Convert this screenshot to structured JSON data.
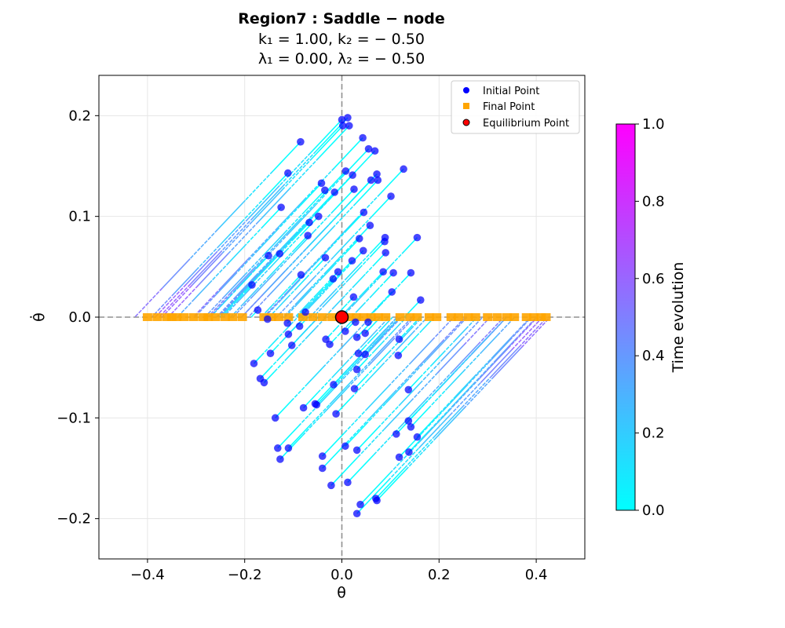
{
  "chart_data": {
    "type": "scatter",
    "title": [
      "Region7 : Saddle − node",
      "k₁ = 1.00, k₂ = − 0.50",
      "λ₁ = 0.00, λ₂ = − 0.50"
    ],
    "xlabel": "θ",
    "ylabel": "θ̇",
    "xlim": [
      -0.5,
      0.5
    ],
    "ylim": [
      -0.24,
      0.24
    ],
    "x_ticks": [
      -0.4,
      -0.2,
      0.0,
      0.2,
      0.4
    ],
    "x_tick_labels": [
      "−0.4",
      "−0.2",
      "0.0",
      "0.2",
      "0.4"
    ],
    "y_ticks": [
      -0.2,
      -0.1,
      0.0,
      0.1,
      0.2
    ],
    "y_tick_labels": [
      "−0.2",
      "−0.1",
      "0.0",
      "0.1",
      "0.2"
    ],
    "grid": true,
    "legend_position": "top-right",
    "legend": [
      "Initial Point",
      "Final Point",
      "Equilibrium Point"
    ],
    "trajectory_slope_dtheta_per_dtheta_dot": -1.96,
    "initial_points": [
      [
        0.0,
        0.196
      ],
      [
        0.012,
        0.198
      ],
      [
        0.002,
        0.19
      ],
      [
        0.015,
        0.19
      ],
      [
        0.043,
        0.178
      ],
      [
        0.055,
        0.167
      ],
      [
        0.068,
        0.165
      ],
      [
        -0.085,
        0.174
      ],
      [
        0.127,
        0.147
      ],
      [
        0.008,
        0.145
      ],
      [
        0.022,
        0.141
      ],
      [
        0.072,
        0.142
      ],
      [
        0.06,
        0.136
      ],
      [
        0.074,
        0.136
      ],
      [
        -0.111,
        0.143
      ],
      [
        -0.042,
        0.133
      ],
      [
        -0.035,
        0.126
      ],
      [
        -0.015,
        0.124
      ],
      [
        0.025,
        0.127
      ],
      [
        0.101,
        0.12
      ],
      [
        -0.125,
        0.109
      ],
      [
        -0.048,
        0.1
      ],
      [
        0.045,
        0.104
      ],
      [
        -0.067,
        0.094
      ],
      [
        0.058,
        0.091
      ],
      [
        -0.07,
        0.081
      ],
      [
        0.036,
        0.078
      ],
      [
        0.089,
        0.079
      ],
      [
        0.088,
        0.075
      ],
      [
        0.155,
        0.079
      ],
      [
        0.044,
        0.066
      ],
      [
        0.09,
        0.064
      ],
      [
        -0.151,
        0.061
      ],
      [
        -0.128,
        0.063
      ],
      [
        -0.034,
        0.059
      ],
      [
        0.021,
        0.056
      ],
      [
        -0.008,
        0.045
      ],
      [
        0.085,
        0.045
      ],
      [
        0.106,
        0.044
      ],
      [
        0.142,
        0.044
      ],
      [
        -0.084,
        0.042
      ],
      [
        -0.018,
        0.038
      ],
      [
        -0.185,
        0.032
      ],
      [
        0.103,
        0.025
      ],
      [
        0.024,
        0.02
      ],
      [
        0.162,
        0.017
      ],
      [
        -0.173,
        0.007
      ],
      [
        -0.075,
        0.005
      ],
      [
        -0.153,
        -0.002
      ],
      [
        0.054,
        -0.005
      ],
      [
        -0.112,
        -0.006
      ],
      [
        -0.087,
        -0.009
      ],
      [
        0.028,
        -0.005
      ],
      [
        0.007,
        -0.014
      ],
      [
        -0.11,
        -0.017
      ],
      [
        0.048,
        -0.016
      ],
      [
        0.031,
        -0.02
      ],
      [
        -0.033,
        -0.022
      ],
      [
        -0.025,
        -0.027
      ],
      [
        0.118,
        -0.022
      ],
      [
        -0.103,
        -0.028
      ],
      [
        0.034,
        -0.036
      ],
      [
        0.048,
        -0.037
      ],
      [
        0.116,
        -0.038
      ],
      [
        -0.147,
        -0.036
      ],
      [
        -0.181,
        -0.046
      ],
      [
        0.031,
        -0.052
      ],
      [
        -0.168,
        -0.061
      ],
      [
        -0.16,
        -0.065
      ],
      [
        -0.017,
        -0.067
      ],
      [
        0.026,
        -0.071
      ],
      [
        0.137,
        -0.072
      ],
      [
        -0.055,
        -0.086
      ],
      [
        -0.052,
        -0.087
      ],
      [
        -0.079,
        -0.09
      ],
      [
        -0.012,
        -0.096
      ],
      [
        -0.137,
        -0.1
      ],
      [
        0.137,
        -0.103
      ],
      [
        0.142,
        -0.109
      ],
      [
        0.112,
        -0.116
      ],
      [
        0.155,
        -0.119
      ],
      [
        0.007,
        -0.128
      ],
      [
        -0.132,
        -0.13
      ],
      [
        -0.11,
        -0.13
      ],
      [
        0.031,
        -0.132
      ],
      [
        0.138,
        -0.134
      ],
      [
        -0.04,
        -0.138
      ],
      [
        0.118,
        -0.139
      ],
      [
        -0.127,
        -0.141
      ],
      [
        -0.04,
        -0.15
      ],
      [
        0.012,
        -0.164
      ],
      [
        -0.022,
        -0.167
      ],
      [
        0.07,
        -0.18
      ],
      [
        0.072,
        -0.182
      ],
      [
        0.038,
        -0.186
      ],
      [
        0.031,
        -0.195
      ]
    ],
    "final_points_x": [
      -0.4,
      -0.38,
      -0.36,
      -0.35,
      -0.34,
      -0.325,
      -0.305,
      -0.285,
      -0.275,
      -0.26,
      -0.24,
      -0.225,
      -0.205,
      -0.16,
      -0.145,
      -0.13,
      -0.11,
      -0.08,
      -0.06,
      -0.04,
      -0.02,
      0.015,
      0.03,
      0.045,
      0.06,
      0.075,
      0.09,
      0.12,
      0.14,
      0.155,
      0.18,
      0.195,
      0.225,
      0.24,
      0.26,
      0.275,
      0.3,
      0.32,
      0.34,
      0.355,
      0.38,
      0.395,
      0.41,
      0.42
    ],
    "final_points_y": 0.0,
    "equilibrium_point": [
      0.0,
      0.0
    ],
    "colorbar": {
      "label": "Time evolution",
      "range": [
        0.0,
        1.0
      ],
      "ticks": [
        0.0,
        0.2,
        0.4,
        0.6,
        0.8,
        1.0
      ],
      "tick_labels": [
        "0.0",
        "0.2",
        "0.4",
        "0.6",
        "0.8",
        "1.0"
      ],
      "colormap": [
        "#00ffff",
        "#ff00ff"
      ]
    },
    "colors": {
      "initial_point": "#0000ff",
      "final_point": "#ffa500",
      "equilibrium_point": "#ff0000",
      "reference_lines": "#808080",
      "grid": "#e6e6e6"
    }
  }
}
